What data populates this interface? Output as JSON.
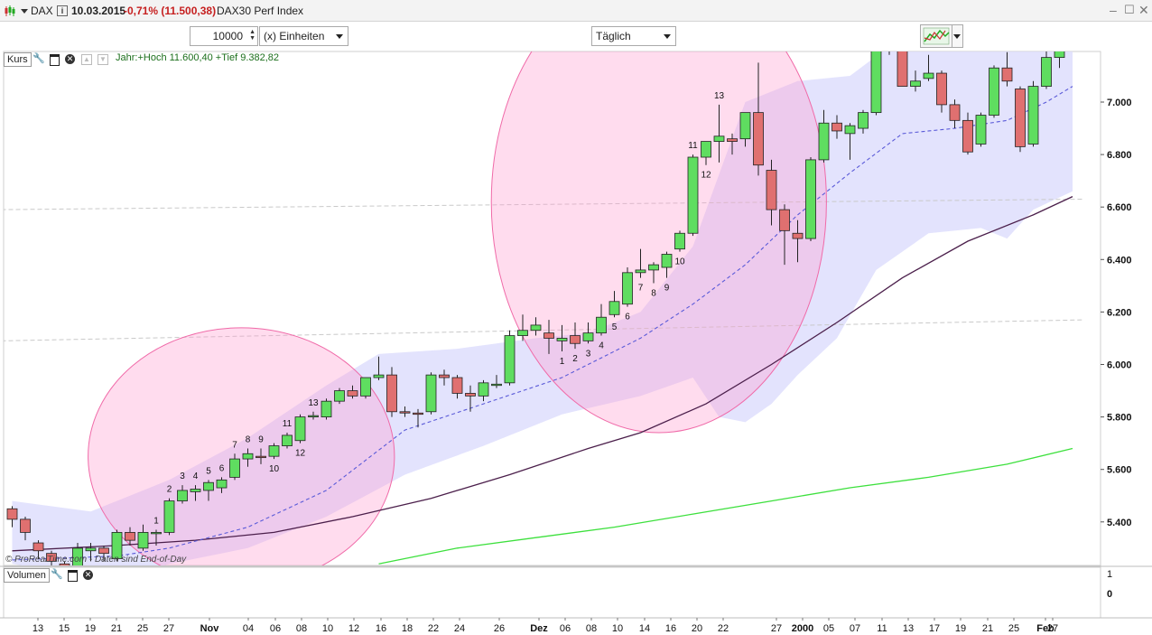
{
  "header": {
    "symbol": "DAX",
    "date": "10.03.2015",
    "change": "-0,71% (11.500,38)",
    "instrument": "DAX30 Perf Index"
  },
  "toolbar": {
    "quantity": "10000",
    "unit_select": "(x) Einheiten",
    "interval_select": "Täglich"
  },
  "kurs_panel": {
    "label": "Kurs",
    "info": "Jahr:+Hoch 11.600,40 +Tief 9.382,82",
    "watermark": "© ProRealTime.com - Daten sind End-of-Day"
  },
  "volume_panel": {
    "label": "Volumen",
    "ticks": [
      "1",
      "0"
    ]
  },
  "colors": {
    "up": "#5fdd60",
    "down": "#e07070",
    "band": "#dcdcfc",
    "ellipse": "#ff9ccd",
    "ma_long": "#4b1f4b",
    "ma_200": "#3de03d",
    "ma_mid": "#5a5ad8"
  },
  "chart_data": {
    "type": "candlestick",
    "yticks": [
      "7.000",
      "6.800",
      "6.600",
      "6.400",
      "6.200",
      "6.000",
      "5.800",
      "5.600",
      "5.400"
    ],
    "ytick_values": [
      7000,
      6800,
      6600,
      6400,
      6200,
      6000,
      5800,
      5600,
      5400
    ],
    "ylim": [
      5240,
      7390
    ],
    "xticks": [
      "13",
      "15",
      "19",
      "21",
      "25",
      "27",
      "Nov",
      "04",
      "06",
      "08",
      "10",
      "12",
      "16",
      "18",
      "22",
      "24",
      "26",
      "Dez",
      "06",
      "08",
      "10",
      "14",
      "16",
      "20",
      "22",
      "27",
      "2000",
      "05",
      "07",
      "11",
      "13",
      "17",
      "19",
      "21",
      "25",
      "27",
      "Feb"
    ],
    "candles": [
      {
        "o": 5450,
        "h": 5460,
        "l": 5380,
        "c": 5410
      },
      {
        "o": 5410,
        "h": 5420,
        "l": 5330,
        "c": 5360
      },
      {
        "o": 5320,
        "h": 5330,
        "l": 5260,
        "c": 5290
      },
      {
        "o": 5280,
        "h": 5290,
        "l": 5230,
        "c": 5250
      },
      {
        "o": 5240,
        "h": 5250,
        "l": 5200,
        "c": 5220
      },
      {
        "o": 5230,
        "h": 5320,
        "l": 5220,
        "c": 5300
      },
      {
        "o": 5290,
        "h": 5320,
        "l": 5250,
        "c": 5300
      },
      {
        "o": 5300,
        "h": 5310,
        "l": 5250,
        "c": 5280
      },
      {
        "o": 5260,
        "h": 5370,
        "l": 5250,
        "c": 5360
      },
      {
        "o": 5360,
        "h": 5380,
        "l": 5310,
        "c": 5330
      },
      {
        "o": 5300,
        "h": 5390,
        "l": 5290,
        "c": 5360
      },
      {
        "o": 5355,
        "h": 5370,
        "l": 5310,
        "c": 5360
      },
      {
        "o": 5360,
        "h": 5490,
        "l": 5350,
        "c": 5480
      },
      {
        "o": 5480,
        "h": 5540,
        "l": 5470,
        "c": 5520
      },
      {
        "o": 5515,
        "h": 5540,
        "l": 5480,
        "c": 5525
      },
      {
        "o": 5520,
        "h": 5560,
        "l": 5480,
        "c": 5550
      },
      {
        "o": 5530,
        "h": 5570,
        "l": 5510,
        "c": 5560
      },
      {
        "o": 5570,
        "h": 5660,
        "l": 5560,
        "c": 5640
      },
      {
        "o": 5640,
        "h": 5680,
        "l": 5610,
        "c": 5660
      },
      {
        "o": 5650,
        "h": 5680,
        "l": 5620,
        "c": 5645
      },
      {
        "o": 5650,
        "h": 5700,
        "l": 5640,
        "c": 5690
      },
      {
        "o": 5690,
        "h": 5740,
        "l": 5680,
        "c": 5730
      },
      {
        "o": 5710,
        "h": 5810,
        "l": 5700,
        "c": 5800
      },
      {
        "o": 5800,
        "h": 5820,
        "l": 5790,
        "c": 5805
      },
      {
        "o": 5800,
        "h": 5870,
        "l": 5790,
        "c": 5860
      },
      {
        "o": 5860,
        "h": 5910,
        "l": 5850,
        "c": 5900
      },
      {
        "o": 5900,
        "h": 5920,
        "l": 5870,
        "c": 5880
      },
      {
        "o": 5880,
        "h": 5940,
        "l": 5870,
        "c": 5950
      },
      {
        "o": 5950,
        "h": 6030,
        "l": 5940,
        "c": 5960
      },
      {
        "o": 5960,
        "h": 5990,
        "l": 5800,
        "c": 5820
      },
      {
        "o": 5820,
        "h": 5840,
        "l": 5800,
        "c": 5815
      },
      {
        "o": 5815,
        "h": 5830,
        "l": 5760,
        "c": 5810
      },
      {
        "o": 5820,
        "h": 5970,
        "l": 5810,
        "c": 5960
      },
      {
        "o": 5960,
        "h": 5980,
        "l": 5920,
        "c": 5950
      },
      {
        "o": 5950,
        "h": 5960,
        "l": 5870,
        "c": 5890
      },
      {
        "o": 5890,
        "h": 5920,
        "l": 5820,
        "c": 5880
      },
      {
        "o": 5880,
        "h": 5940,
        "l": 5860,
        "c": 5930
      },
      {
        "o": 5920,
        "h": 5960,
        "l": 5910,
        "c": 5925
      },
      {
        "o": 5930,
        "h": 6130,
        "l": 5920,
        "c": 6110
      },
      {
        "o": 6110,
        "h": 6190,
        "l": 6090,
        "c": 6130
      },
      {
        "o": 6130,
        "h": 6180,
        "l": 6110,
        "c": 6150
      },
      {
        "o": 6120,
        "h": 6170,
        "l": 6040,
        "c": 6100
      },
      {
        "o": 6090,
        "h": 6150,
        "l": 6050,
        "c": 6100
      },
      {
        "o": 6110,
        "h": 6160,
        "l": 6060,
        "c": 6080
      },
      {
        "o": 6090,
        "h": 6160,
        "l": 6080,
        "c": 6120
      },
      {
        "o": 6120,
        "h": 6230,
        "l": 6110,
        "c": 6180
      },
      {
        "o": 6190,
        "h": 6280,
        "l": 6180,
        "c": 6240
      },
      {
        "o": 6230,
        "h": 6370,
        "l": 6220,
        "c": 6350
      },
      {
        "o": 6350,
        "h": 6440,
        "l": 6330,
        "c": 6360
      },
      {
        "o": 6360,
        "h": 6390,
        "l": 6310,
        "c": 6380
      },
      {
        "o": 6370,
        "h": 6430,
        "l": 6330,
        "c": 6420
      },
      {
        "o": 6440,
        "h": 6510,
        "l": 6430,
        "c": 6500
      },
      {
        "o": 6500,
        "h": 6800,
        "l": 6490,
        "c": 6790
      },
      {
        "o": 6790,
        "h": 6850,
        "l": 6760,
        "c": 6850
      },
      {
        "o": 6850,
        "h": 6990,
        "l": 6770,
        "c": 6870
      },
      {
        "o": 6860,
        "h": 6880,
        "l": 6800,
        "c": 6850
      },
      {
        "o": 6860,
        "h": 6960,
        "l": 6830,
        "c": 6960
      },
      {
        "o": 6960,
        "h": 7150,
        "l": 6720,
        "c": 6760
      },
      {
        "o": 6740,
        "h": 6780,
        "l": 6530,
        "c": 6590
      },
      {
        "o": 6590,
        "h": 6610,
        "l": 6380,
        "c": 6510
      },
      {
        "o": 6500,
        "h": 6550,
        "l": 6390,
        "c": 6480
      },
      {
        "o": 6480,
        "h": 6790,
        "l": 6470,
        "c": 6780
      },
      {
        "o": 6780,
        "h": 6970,
        "l": 6770,
        "c": 6920
      },
      {
        "o": 6920,
        "h": 6950,
        "l": 6860,
        "c": 6890
      },
      {
        "o": 6880,
        "h": 6920,
        "l": 6780,
        "c": 6910
      },
      {
        "o": 6900,
        "h": 6970,
        "l": 6880,
        "c": 6960
      },
      {
        "o": 6960,
        "h": 7310,
        "l": 6950,
        "c": 7300
      },
      {
        "o": 7300,
        "h": 7340,
        "l": 7180,
        "c": 7230
      },
      {
        "o": 7230,
        "h": 7250,
        "l": 7060,
        "c": 7060
      },
      {
        "o": 7060,
        "h": 7120,
        "l": 7040,
        "c": 7080
      },
      {
        "o": 7090,
        "h": 7180,
        "l": 7080,
        "c": 7110
      },
      {
        "o": 7110,
        "h": 7120,
        "l": 6960,
        "c": 6990
      },
      {
        "o": 6990,
        "h": 7010,
        "l": 6900,
        "c": 6930
      },
      {
        "o": 6930,
        "h": 6960,
        "l": 6800,
        "c": 6810
      },
      {
        "o": 6840,
        "h": 6960,
        "l": 6830,
        "c": 6950
      },
      {
        "o": 6950,
        "h": 7140,
        "l": 6940,
        "c": 7130
      },
      {
        "o": 7130,
        "h": 7190,
        "l": 7060,
        "c": 7080
      },
      {
        "o": 7050,
        "h": 7060,
        "l": 6810,
        "c": 6830
      },
      {
        "o": 6840,
        "h": 7080,
        "l": 6830,
        "c": 7060
      },
      {
        "o": 7060,
        "h": 7220,
        "l": 7050,
        "c": 7170
      },
      {
        "o": 7170,
        "h": 7240,
        "l": 7130,
        "c": 7200
      }
    ],
    "sequence_labels": [
      {
        "i": 11,
        "text": "1",
        "pos": "above"
      },
      {
        "i": 12,
        "text": "2",
        "pos": "above"
      },
      {
        "i": 13,
        "text": "3",
        "pos": "above"
      },
      {
        "i": 14,
        "text": "4",
        "pos": "above"
      },
      {
        "i": 15,
        "text": "5",
        "pos": "above"
      },
      {
        "i": 16,
        "text": "6",
        "pos": "above"
      },
      {
        "i": 17,
        "text": "7",
        "pos": "above"
      },
      {
        "i": 18,
        "text": "8",
        "pos": "above"
      },
      {
        "i": 19,
        "text": "9",
        "pos": "above"
      },
      {
        "i": 20,
        "text": "10",
        "pos": "below"
      },
      {
        "i": 21,
        "text": "11",
        "pos": "above"
      },
      {
        "i": 22,
        "text": "12",
        "pos": "below"
      },
      {
        "i": 23,
        "text": "13",
        "pos": "above"
      },
      {
        "i": 42,
        "text": "1",
        "pos": "below"
      },
      {
        "i": 43,
        "text": "2",
        "pos": "below"
      },
      {
        "i": 44,
        "text": "3",
        "pos": "below"
      },
      {
        "i": 45,
        "text": "4",
        "pos": "below"
      },
      {
        "i": 46,
        "text": "5",
        "pos": "below"
      },
      {
        "i": 47,
        "text": "6",
        "pos": "below"
      },
      {
        "i": 48,
        "text": "7",
        "pos": "below"
      },
      {
        "i": 49,
        "text": "8",
        "pos": "below"
      },
      {
        "i": 50,
        "text": "9",
        "pos": "below"
      },
      {
        "i": 51,
        "text": "10",
        "pos": "below"
      },
      {
        "i": 52,
        "text": "11",
        "pos": "above"
      },
      {
        "i": 53,
        "text": "12",
        "pos": "below"
      },
      {
        "i": 54,
        "text": "13",
        "pos": "above"
      }
    ],
    "ma_long": [
      [
        0,
        5290
      ],
      [
        8,
        5310
      ],
      [
        14,
        5330
      ],
      [
        20,
        5360
      ],
      [
        26,
        5420
      ],
      [
        32,
        5490
      ],
      [
        38,
        5580
      ],
      [
        44,
        5680
      ],
      [
        48,
        5740
      ],
      [
        53,
        5850
      ],
      [
        58,
        6000
      ],
      [
        63,
        6160
      ],
      [
        68,
        6330
      ],
      [
        73,
        6470
      ],
      [
        78,
        6570
      ],
      [
        81,
        6640
      ]
    ],
    "ma_200": [
      [
        28,
        5240
      ],
      [
        34,
        5300
      ],
      [
        40,
        5340
      ],
      [
        46,
        5380
      ],
      [
        52,
        5430
      ],
      [
        58,
        5480
      ],
      [
        64,
        5530
      ],
      [
        70,
        5570
      ],
      [
        76,
        5620
      ],
      [
        81,
        5680
      ]
    ],
    "ma_mid": [
      [
        0,
        5255
      ],
      [
        8,
        5270
      ],
      [
        12,
        5300
      ],
      [
        18,
        5380
      ],
      [
        24,
        5520
      ],
      [
        30,
        5750
      ],
      [
        36,
        5850
      ],
      [
        42,
        5950
      ],
      [
        48,
        6100
      ],
      [
        52,
        6230
      ],
      [
        56,
        6380
      ],
      [
        60,
        6570
      ],
      [
        64,
        6730
      ],
      [
        68,
        6880
      ],
      [
        72,
        6900
      ],
      [
        76,
        6930
      ],
      [
        79,
        7000
      ],
      [
        81,
        7060
      ]
    ],
    "band_upper": [
      [
        0,
        5480
      ],
      [
        6,
        5440
      ],
      [
        12,
        5560
      ],
      [
        18,
        5720
      ],
      [
        24,
        5920
      ],
      [
        28,
        6040
      ],
      [
        34,
        6060
      ],
      [
        40,
        6100
      ],
      [
        44,
        6120
      ],
      [
        48,
        6200
      ],
      [
        52,
        6450
      ],
      [
        56,
        7000
      ],
      [
        60,
        7080
      ],
      [
        64,
        7100
      ],
      [
        68,
        7250
      ],
      [
        72,
        7320
      ],
      [
        76,
        7330
      ],
      [
        81,
        7330
      ]
    ],
    "band_lower": [
      [
        0,
        5240
      ],
      [
        8,
        5180
      ],
      [
        12,
        5240
      ],
      [
        18,
        5300
      ],
      [
        24,
        5420
      ],
      [
        30,
        5580
      ],
      [
        36,
        5690
      ],
      [
        42,
        5810
      ],
      [
        48,
        5880
      ],
      [
        52,
        5950
      ],
      [
        54,
        5800
      ],
      [
        56,
        5780
      ],
      [
        58,
        5850
      ],
      [
        60,
        5960
      ],
      [
        63,
        6100
      ],
      [
        66,
        6360
      ],
      [
        70,
        6500
      ],
      [
        74,
        6520
      ],
      [
        76,
        6480
      ],
      [
        78,
        6590
      ],
      [
        81,
        6660
      ]
    ],
    "horizontal_dashed": [
      [
        0,
        6590
      ],
      [
        81,
        6630
      ]
    ],
    "horizontal_dashed_2": [
      [
        0,
        6090
      ],
      [
        81,
        6170
      ]
    ],
    "ellipses": [
      {
        "cx_i": 17.5,
        "cy": 5650,
        "rx_i": 11.7,
        "ry": 490
      },
      {
        "cx_i": 49.4,
        "cy": 6620,
        "rx_i": 12.8,
        "ry": 880
      }
    ]
  }
}
